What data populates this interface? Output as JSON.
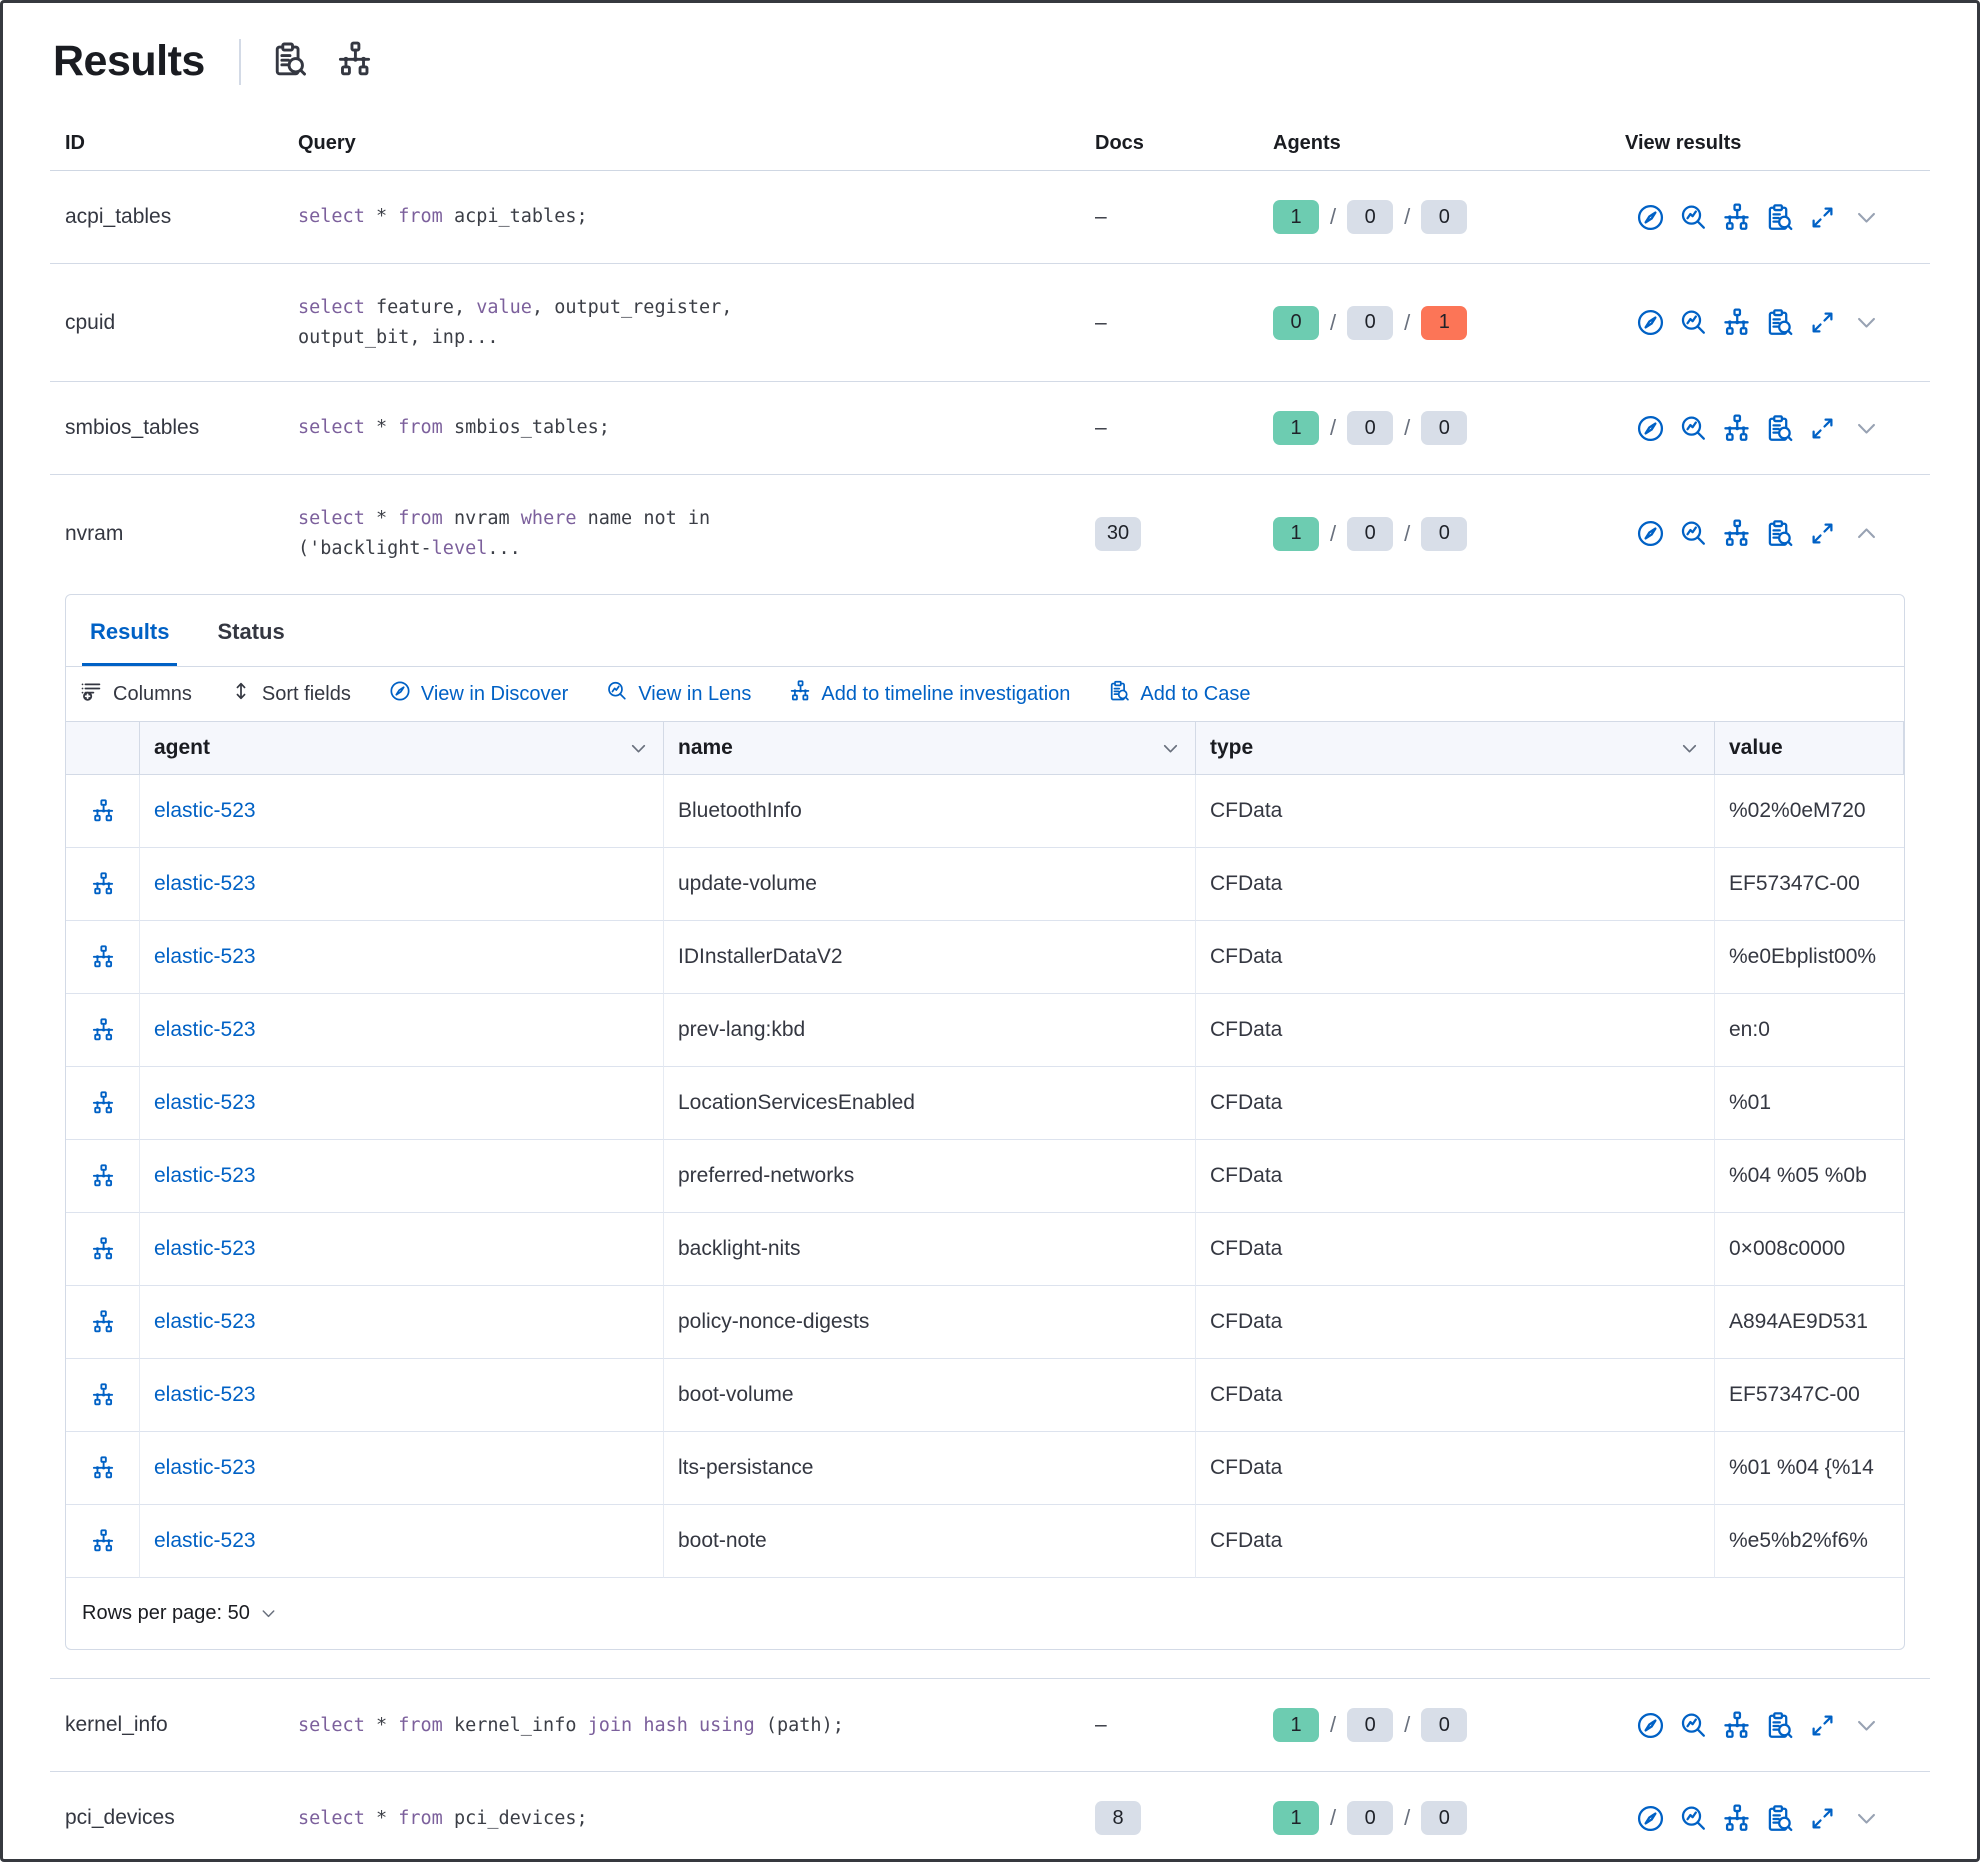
{
  "page": {
    "title": "Results"
  },
  "colors": {
    "accent_blue": "#0061c5",
    "keyword_purple": "#7c609c",
    "badge_success": "#6dccb1",
    "badge_neutral": "#d8dee8",
    "badge_danger": "#fc7557",
    "border": "#d3dae6"
  },
  "title_icons": [
    {
      "name": "inspect-icon",
      "icon": "case"
    },
    {
      "name": "topology-icon",
      "icon": "timeline"
    }
  ],
  "queries_table": {
    "columns": [
      "ID",
      "Query",
      "Docs",
      "Agents",
      "View results"
    ],
    "sql_keywords": [
      "select",
      "from",
      "where",
      "value",
      "level",
      "join",
      "hash",
      "using"
    ],
    "view_results_actions": [
      {
        "name": "view-in-discover-icon",
        "icon": "compass"
      },
      {
        "name": "view-in-lens-icon",
        "icon": "lens"
      },
      {
        "name": "add-to-timeline-icon",
        "icon": "timeline"
      },
      {
        "name": "add-to-case-icon",
        "icon": "case"
      },
      {
        "name": "expand-results-icon",
        "icon": "expand"
      }
    ],
    "rows": [
      {
        "id": "acpi_tables",
        "query_lines": [
          "select * from acpi_tables;"
        ],
        "docs": "–",
        "docs_badge": false,
        "agents": [
          1,
          0,
          0
        ],
        "expanded": false
      },
      {
        "id": "cpuid",
        "query_lines": [
          "select feature, value, output_register,",
          "output_bit, inp..."
        ],
        "docs": "–",
        "docs_badge": false,
        "agents": [
          0,
          0,
          1
        ],
        "expanded": false
      },
      {
        "id": "smbios_tables",
        "query_lines": [
          "select * from smbios_tables;"
        ],
        "docs": "–",
        "docs_badge": false,
        "agents": [
          1,
          0,
          0
        ],
        "expanded": false
      },
      {
        "id": "nvram",
        "query_lines": [
          "select * from nvram where name not in",
          "('backlight-level..."
        ],
        "docs": "30",
        "docs_badge": true,
        "agents": [
          1,
          0,
          0
        ],
        "expanded": true
      },
      {
        "id": "kernel_info",
        "query_lines": [
          "select * from kernel_info join hash using (path);"
        ],
        "docs": "–",
        "docs_badge": false,
        "agents": [
          1,
          0,
          0
        ],
        "expanded": false
      },
      {
        "id": "pci_devices",
        "query_lines": [
          "select * from pci_devices;"
        ],
        "docs": "8",
        "docs_badge": true,
        "agents": [
          1,
          0,
          0
        ],
        "expanded": false
      }
    ]
  },
  "results_panel": {
    "tabs": [
      {
        "label": "Results",
        "active": true
      },
      {
        "label": "Status",
        "active": false
      }
    ],
    "toolbar": [
      {
        "label": "Columns",
        "icon": "columns",
        "style": "dark"
      },
      {
        "label": "Sort fields",
        "icon": "sort",
        "style": "dark"
      },
      {
        "label": "View in Discover",
        "icon": "compass",
        "style": "blue"
      },
      {
        "label": "View in Lens",
        "icon": "lens",
        "style": "blue"
      },
      {
        "label": "Add to timeline investigation",
        "icon": "timeline",
        "style": "blue"
      },
      {
        "label": "Add to Case",
        "icon": "case",
        "style": "blue"
      }
    ],
    "grid": {
      "columns": [
        "agent",
        "name",
        "type",
        "value"
      ],
      "rows": [
        {
          "agent": "elastic-523",
          "name": "BluetoothInfo",
          "type": "CFData",
          "value": "%02%0eM720"
        },
        {
          "agent": "elastic-523",
          "name": "update-volume",
          "type": "CFData",
          "value": "EF57347C-00"
        },
        {
          "agent": "elastic-523",
          "name": "IDInstallerDataV2",
          "type": "CFData",
          "value": "%e0Ebplist00%"
        },
        {
          "agent": "elastic-523",
          "name": "prev-lang:kbd",
          "type": "CFData",
          "value": "en:0"
        },
        {
          "agent": "elastic-523",
          "name": "LocationServicesEnabled",
          "type": "CFData",
          "value": "%01"
        },
        {
          "agent": "elastic-523",
          "name": "preferred-networks",
          "type": "CFData",
          "value": "%04 %05 %0b"
        },
        {
          "agent": "elastic-523",
          "name": "backlight-nits",
          "type": "CFData",
          "value": "0×008c0000"
        },
        {
          "agent": "elastic-523",
          "name": "policy-nonce-digests",
          "type": "CFData",
          "value": "A894AE9D531"
        },
        {
          "agent": "elastic-523",
          "name": "boot-volume",
          "type": "CFData",
          "value": "EF57347C-00"
        },
        {
          "agent": "elastic-523",
          "name": "lts-persistance",
          "type": "CFData",
          "value": "%01 %04 {%14"
        },
        {
          "agent": "elastic-523",
          "name": "boot-note",
          "type": "CFData",
          "value": "%e5%b2%f6%"
        }
      ]
    },
    "footer": {
      "rows_per_page_label": "Rows per page: 50"
    }
  }
}
